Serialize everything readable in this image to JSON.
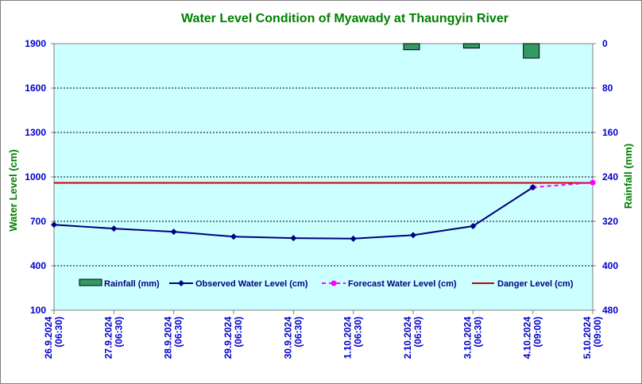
{
  "chart_data": {
    "type": "line",
    "title": "Water Level Condition of  Myawady at Thaungyin River",
    "ylabel": "Water Level (cm)",
    "y2label": "Rainfall (mm)",
    "ylim": [
      100,
      1900
    ],
    "y_ticks": [
      1900,
      1600,
      1300,
      1000,
      700,
      400,
      100
    ],
    "y2lim": [
      0,
      480
    ],
    "y2_reversed": true,
    "y2_ticks": [
      0,
      80,
      160,
      240,
      320,
      400,
      480
    ],
    "categories": [
      "26.9.2024\n(06:30)",
      "27.9.2024\n(06:30)",
      "28.9.2024\n(06:30)",
      "29.9.2024\n(06:30)",
      "30.9.2024\n(06:30)",
      "1.10.2024\n(06:30)",
      "2.10.2024\n(06:30)",
      "3.10.2024\n(06:30)",
      "4.10.2024\n(09:00)",
      "5.10.2024\n(09:00)"
    ],
    "series": [
      {
        "name": "Rainfall (mm)",
        "type": "bar",
        "axis": "right",
        "values": [
          0,
          0,
          0,
          0,
          0,
          0,
          11,
          8,
          26,
          0
        ],
        "color": "#339966"
      },
      {
        "name": "Observed Water Level (cm)",
        "type": "line",
        "axis": "left",
        "values": [
          677,
          651,
          630,
          597,
          587,
          583,
          607,
          668,
          930,
          null
        ],
        "color": "#000080"
      },
      {
        "name": "Forecast Water Level (cm)",
        "type": "line",
        "axis": "left",
        "dashed": true,
        "values": [
          null,
          null,
          null,
          null,
          null,
          null,
          null,
          null,
          930,
          962
        ],
        "color": "#ff00ff"
      },
      {
        "name": "Danger Level (cm)",
        "type": "line",
        "axis": "left",
        "values": [
          960,
          960,
          960,
          960,
          960,
          960,
          960,
          960,
          960,
          960
        ],
        "color": "#cc0000"
      }
    ],
    "grid": true,
    "legend_position": "bottom",
    "plot_background": "#ccffff"
  }
}
